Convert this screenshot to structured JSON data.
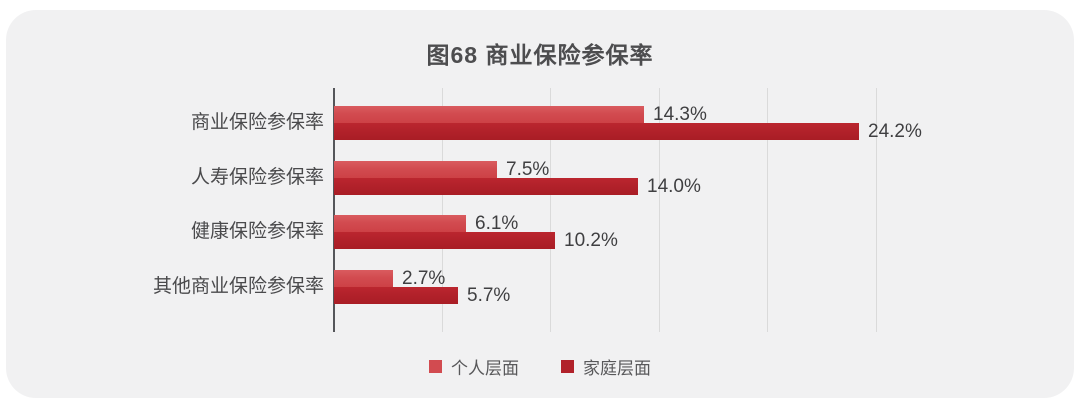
{
  "page": {
    "background": "#ffffff",
    "card_background": "#f1f1f2"
  },
  "chart_data": {
    "type": "bar",
    "orientation": "horizontal",
    "title": "图68  商业保险参保率",
    "categories": [
      "商业保险参保率",
      "人寿保险参保率",
      "健康保险参保率",
      "其他商业保险参保率"
    ],
    "series": [
      {
        "name": "个人层面",
        "color": "#d24b50",
        "values": [
          14.3,
          7.5,
          6.1,
          2.7
        ],
        "labels": [
          "14.3%",
          "7.5%",
          "6.1%",
          "2.7%"
        ]
      },
      {
        "name": "家庭层面",
        "color": "#b1212a",
        "values": [
          24.2,
          14.0,
          10.2,
          5.7
        ],
        "labels": [
          "24.2%",
          "14.0%",
          "10.2%",
          "5.7%"
        ]
      }
    ],
    "xlabel": "",
    "ylabel": "",
    "xlim": [
      0,
      25
    ],
    "grid_interval": 5,
    "grid_on": true,
    "legend_position": "bottom",
    "grid_color": "#dadada",
    "axis_color": "#55565a",
    "label_color": "#4a4a4c",
    "value_label_color": "#3f3f41",
    "title_color": "#4d4d4f"
  }
}
